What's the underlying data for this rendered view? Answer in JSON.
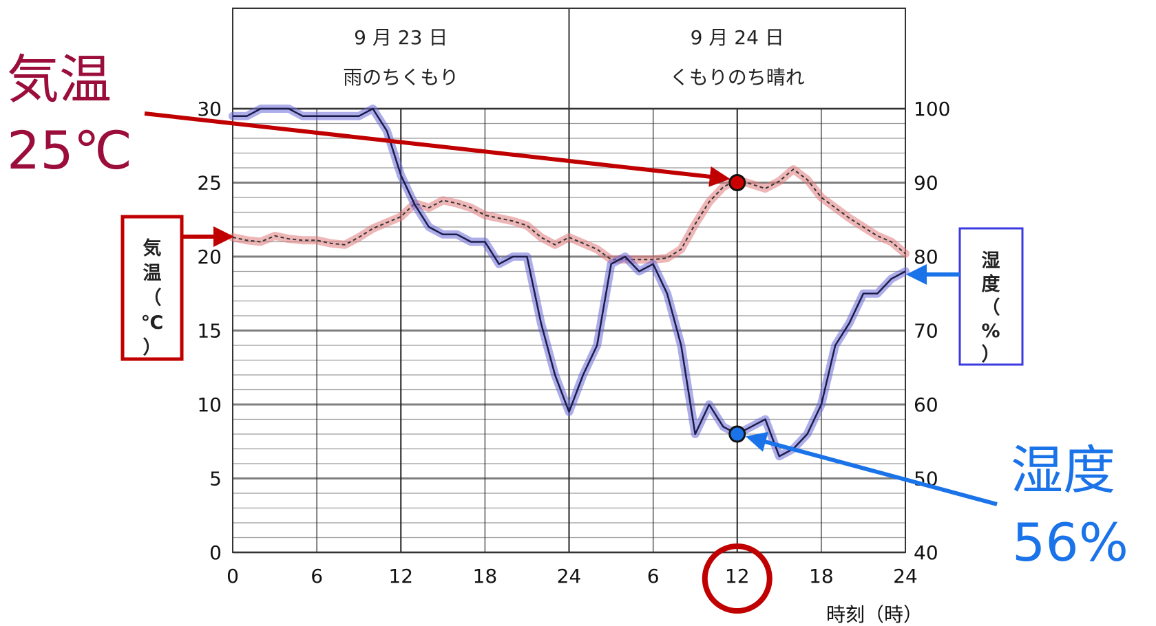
{
  "chart_data": {
    "type": "line",
    "day_headers": [
      {
        "date": "9 月 23 日",
        "weather": "雨のちくもり"
      },
      {
        "date": "9 月 24 日",
        "weather": "くもりのち晴れ"
      }
    ],
    "x_ticks": [
      "0",
      "6",
      "12",
      "18",
      "24",
      "6",
      "12",
      "18",
      "24"
    ],
    "x_label": "時刻（時）",
    "y_left": {
      "label_chars": [
        "気",
        "温",
        "（",
        "℃",
        "）"
      ],
      "ticks": [
        "0",
        "5",
        "10",
        "15",
        "20",
        "25",
        "30"
      ],
      "range": [
        0,
        30
      ]
    },
    "y_right": {
      "label_chars": [
        "湿",
        "度",
        "（",
        "%",
        "）"
      ],
      "ticks": [
        "40",
        "50",
        "60",
        "70",
        "80",
        "90",
        "100"
      ],
      "range": [
        40,
        100
      ]
    },
    "x_range": [
      0,
      48
    ],
    "series": [
      {
        "axis": "left",
        "color": "#e07a7a",
        "x": [
          0,
          1,
          2,
          3,
          4,
          5,
          6,
          7,
          8,
          9,
          10,
          11,
          12,
          13,
          14,
          15,
          16,
          17,
          18,
          19,
          20,
          21,
          22,
          23,
          24,
          25,
          26,
          27,
          28,
          29,
          30,
          31,
          32,
          33,
          34,
          35,
          36,
          37,
          38,
          39,
          40,
          41,
          42,
          43,
          44,
          45,
          46,
          47,
          48
        ],
        "values": [
          21.3,
          21.1,
          21.0,
          21.4,
          21.2,
          21.1,
          21.1,
          20.9,
          20.8,
          21.3,
          21.9,
          22.3,
          22.7,
          23.6,
          23.3,
          23.8,
          23.6,
          23.3,
          22.8,
          22.6,
          22.4,
          22.1,
          21.3,
          20.8,
          21.3,
          20.9,
          20.5,
          19.8,
          19.8,
          19.8,
          19.8,
          19.9,
          20.5,
          22.2,
          23.7,
          24.7,
          25.2,
          24.9,
          24.6,
          25.1,
          25.9,
          25.2,
          24.0,
          23.3,
          22.6,
          22.0,
          21.4,
          21.0,
          20.2
        ]
      },
      {
        "axis": "right",
        "color": "#6a6ad8",
        "x": [
          0,
          1,
          2,
          3,
          4,
          5,
          6,
          7,
          8,
          9,
          10,
          11,
          12,
          13,
          14,
          15,
          16,
          17,
          18,
          19,
          20,
          21,
          22,
          23,
          24,
          25,
          26,
          27,
          28,
          29,
          30,
          31,
          32,
          33,
          34,
          35,
          36,
          37,
          38,
          39,
          40,
          41,
          42,
          43,
          44,
          45,
          46,
          47,
          48
        ],
        "values": [
          99,
          99,
          100,
          100,
          100,
          99,
          99,
          99,
          99,
          99,
          100,
          97,
          91,
          87,
          84,
          83,
          83,
          82,
          82,
          79,
          80,
          80,
          71,
          64,
          59,
          64,
          68,
          79,
          80,
          78,
          79,
          75,
          68,
          56,
          60,
          57,
          56,
          57,
          58,
          53,
          54,
          56,
          60,
          68,
          71,
          75,
          75,
          77,
          78
        ]
      }
    ],
    "highlights": [
      {
        "x": 36,
        "axis": "left",
        "value": 25,
        "label_line1": "気温",
        "label_line2": "25℃",
        "point_color": "#cc0000"
      },
      {
        "x": 36,
        "axis": "right",
        "value": 56,
        "label_line1": "湿度",
        "label_line2": "56%",
        "point_color": "#1a73e8"
      }
    ],
    "grid": true,
    "accent_red": "#c00000",
    "accent_blue": "#1a73e8"
  }
}
